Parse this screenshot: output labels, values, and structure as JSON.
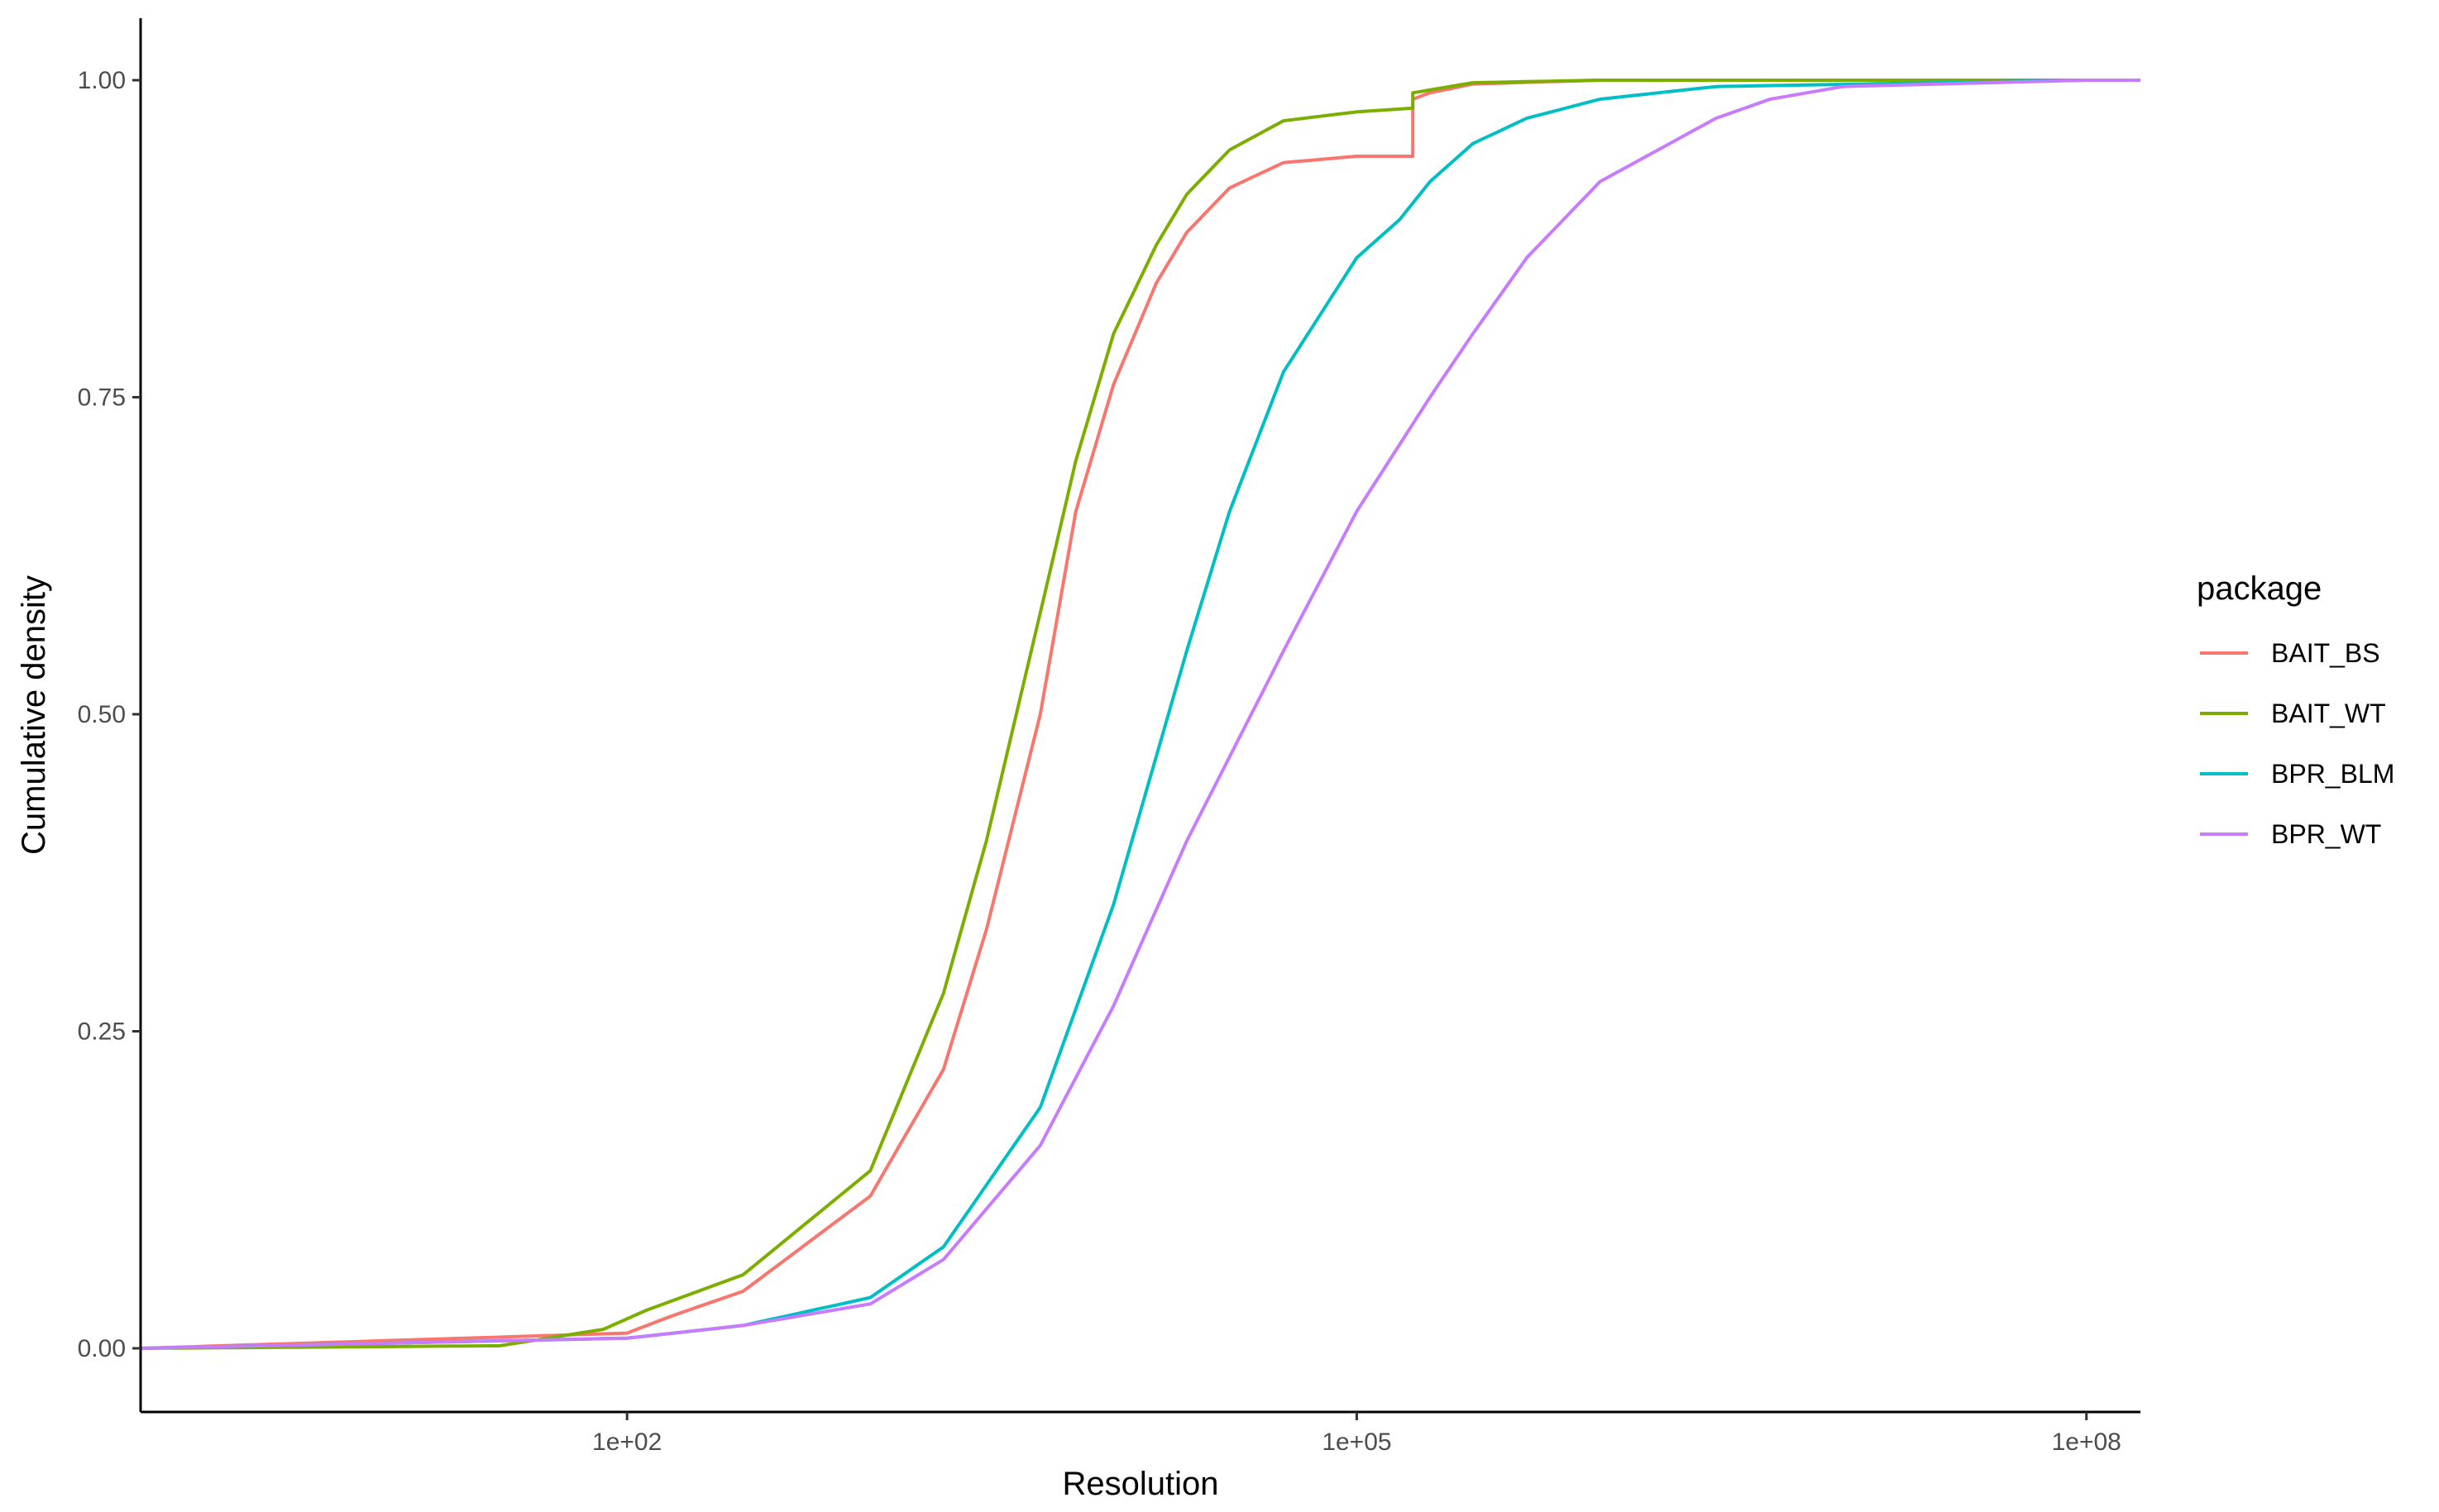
{
  "chart_data": {
    "type": "line",
    "subtype": "empirical cumulative distribution",
    "xlabel": "Resolution",
    "ylabel": "Cumulative density",
    "x_scale": "log10",
    "xlim": [
      1,
      100000000.0
    ],
    "ylim": [
      0,
      1
    ],
    "x_ticks": [
      {
        "value": 100,
        "label": "1e+02"
      },
      {
        "value": 100000,
        "label": "1e+05"
      },
      {
        "value": 100000000,
        "label": "1e+08"
      }
    ],
    "y_ticks": [
      {
        "value": 0,
        "label": "0.00"
      },
      {
        "value": 0.25,
        "label": "0.25"
      },
      {
        "value": 0.5,
        "label": "0.50"
      },
      {
        "value": 0.75,
        "label": "0.75"
      },
      {
        "value": 1,
        "label": "1.00"
      }
    ],
    "grid": false,
    "legend": {
      "title": "package",
      "position": "right"
    },
    "series": [
      {
        "name": "BAIT_BS",
        "color": "#F8766D",
        "x": [
          1,
          100,
          150,
          300,
          1000,
          2000,
          3000,
          5000,
          7000,
          10000,
          15000,
          20000,
          30000,
          50000,
          100000,
          170000,
          170000,
          200000,
          300000,
          1000000,
          100000000
        ],
        "y": [
          0,
          0.012,
          0.025,
          0.045,
          0.12,
          0.22,
          0.33,
          0.5,
          0.66,
          0.76,
          0.84,
          0.88,
          0.915,
          0.935,
          0.94,
          0.94,
          0.985,
          0.99,
          0.997,
          1.0,
          1.0
        ]
      },
      {
        "name": "BAIT_WT",
        "color": "#7CAE00",
        "x": [
          1,
          30,
          80,
          120,
          300,
          1000,
          2000,
          3000,
          5000,
          7000,
          10000,
          15000,
          20000,
          30000,
          50000,
          100000,
          170000,
          170000,
          300000,
          1000000,
          100000000
        ],
        "y": [
          0,
          0.002,
          0.015,
          0.03,
          0.058,
          0.14,
          0.28,
          0.4,
          0.58,
          0.7,
          0.8,
          0.87,
          0.91,
          0.945,
          0.968,
          0.975,
          0.978,
          0.99,
          0.998,
          1.0,
          1.0
        ]
      },
      {
        "name": "BPR_BLM",
        "color": "#00BFC4",
        "x": [
          1,
          100,
          300,
          1000,
          2000,
          5000,
          10000,
          20000,
          30000,
          50000,
          100000,
          150000,
          200000,
          300000,
          500000,
          1000000,
          3000000,
          100000000
        ],
        "y": [
          0,
          0.008,
          0.018,
          0.04,
          0.08,
          0.19,
          0.35,
          0.55,
          0.66,
          0.77,
          0.86,
          0.89,
          0.92,
          0.95,
          0.97,
          0.985,
          0.995,
          1.0
        ]
      },
      {
        "name": "BPR_WT",
        "color": "#C77CFF",
        "x": [
          1,
          100,
          300,
          1000,
          2000,
          5000,
          10000,
          20000,
          50000,
          100000,
          200000,
          300000,
          500000,
          1000000,
          3000000,
          5000000,
          10000000,
          100000000
        ],
        "y": [
          0,
          0.008,
          0.018,
          0.035,
          0.07,
          0.16,
          0.27,
          0.4,
          0.55,
          0.66,
          0.75,
          0.8,
          0.86,
          0.92,
          0.97,
          0.985,
          0.995,
          1.0
        ]
      }
    ]
  }
}
